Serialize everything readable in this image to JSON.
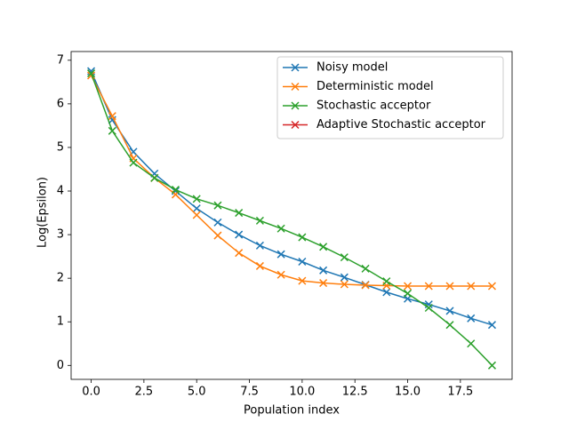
{
  "chart_data": {
    "type": "line",
    "xlabel": "Population index",
    "ylabel": "Log(Epsilon)",
    "x": [
      0,
      1,
      2,
      3,
      4,
      5,
      6,
      7,
      8,
      9,
      10,
      11,
      12,
      13,
      14,
      15,
      16,
      17,
      18,
      19
    ],
    "series": [
      {
        "name": "Noisy model",
        "color": "#1f77b4",
        "values": [
          6.75,
          5.63,
          4.9,
          4.4,
          4.0,
          3.6,
          3.28,
          3.0,
          2.75,
          2.55,
          2.38,
          2.18,
          2.02,
          1.85,
          1.68,
          1.53,
          1.4,
          1.25,
          1.08,
          0.93
        ]
      },
      {
        "name": "Deterministic model",
        "color": "#ff7f0e",
        "values": [
          6.65,
          5.72,
          4.75,
          4.3,
          3.92,
          3.45,
          2.98,
          2.58,
          2.28,
          2.08,
          1.94,
          1.89,
          1.86,
          1.84,
          1.83,
          1.82,
          1.82,
          1.82,
          1.82,
          1.82
        ]
      },
      {
        "name": "Stochastic acceptor",
        "color": "#2ca02c",
        "values": [
          6.7,
          5.38,
          4.65,
          4.3,
          4.03,
          3.82,
          3.67,
          3.5,
          3.32,
          3.14,
          2.94,
          2.72,
          2.48,
          2.22,
          1.93,
          1.65,
          1.32,
          0.93,
          0.5,
          0.0
        ]
      },
      {
        "name": "Adaptive Stochastic acceptor",
        "color": "#d62728",
        "values": [
          null,
          null,
          null,
          null,
          null,
          null,
          null,
          null,
          null,
          null,
          null,
          null,
          null,
          null,
          null,
          null,
          null,
          null,
          null,
          null
        ]
      }
    ],
    "xlim": [
      -0.95,
      19.95
    ],
    "xticks": [
      {
        "value": 0,
        "label": "0.0"
      },
      2.5,
      {
        "value": 5,
        "label": "5.0"
      },
      7.5,
      {
        "value": 10,
        "label": "10.0"
      },
      12.5,
      {
        "value": 15,
        "label": "15.0"
      },
      17.5
    ],
    "ylim": [
      -0.32,
      7.2
    ],
    "yticks": [
      0,
      1,
      2,
      3,
      4,
      5,
      6,
      7
    ],
    "grid": false,
    "legend": "upper right",
    "marker": "x"
  }
}
